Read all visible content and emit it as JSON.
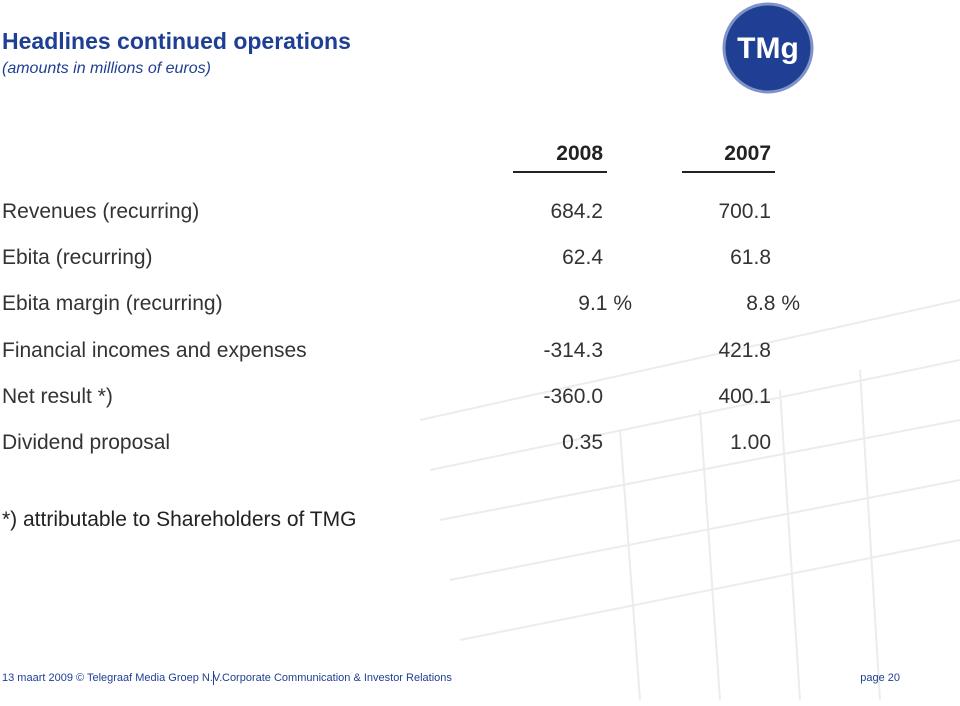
{
  "header": {
    "title": "Headlines continued operations",
    "subtitle": "(amounts in millions of euros)"
  },
  "logo": "TMg",
  "table": {
    "columns": [
      "2008",
      "2007"
    ],
    "rows": [
      [
        "Revenues (recurring)",
        "684.2",
        "700.1"
      ],
      [
        "Ebita (recurring)",
        "62.4",
        "61.8"
      ],
      [
        "Ebita margin (recurring)",
        "9.1 %",
        "8.8 %"
      ],
      [
        "Financial incomes and expenses",
        "-314.3",
        "421.8"
      ],
      [
        "Net result *)",
        "-360.0",
        "400.1"
      ],
      [
        "Dividend proposal",
        "0.35",
        "1.00"
      ]
    ]
  },
  "footnote": "*) attributable to Shareholders of TMG",
  "footer": {
    "left": "13 maart 2009 © Telegraaf Media Groep N.V.",
    "center": "Corporate Communication & Investor Relations",
    "page": "page 20"
  }
}
